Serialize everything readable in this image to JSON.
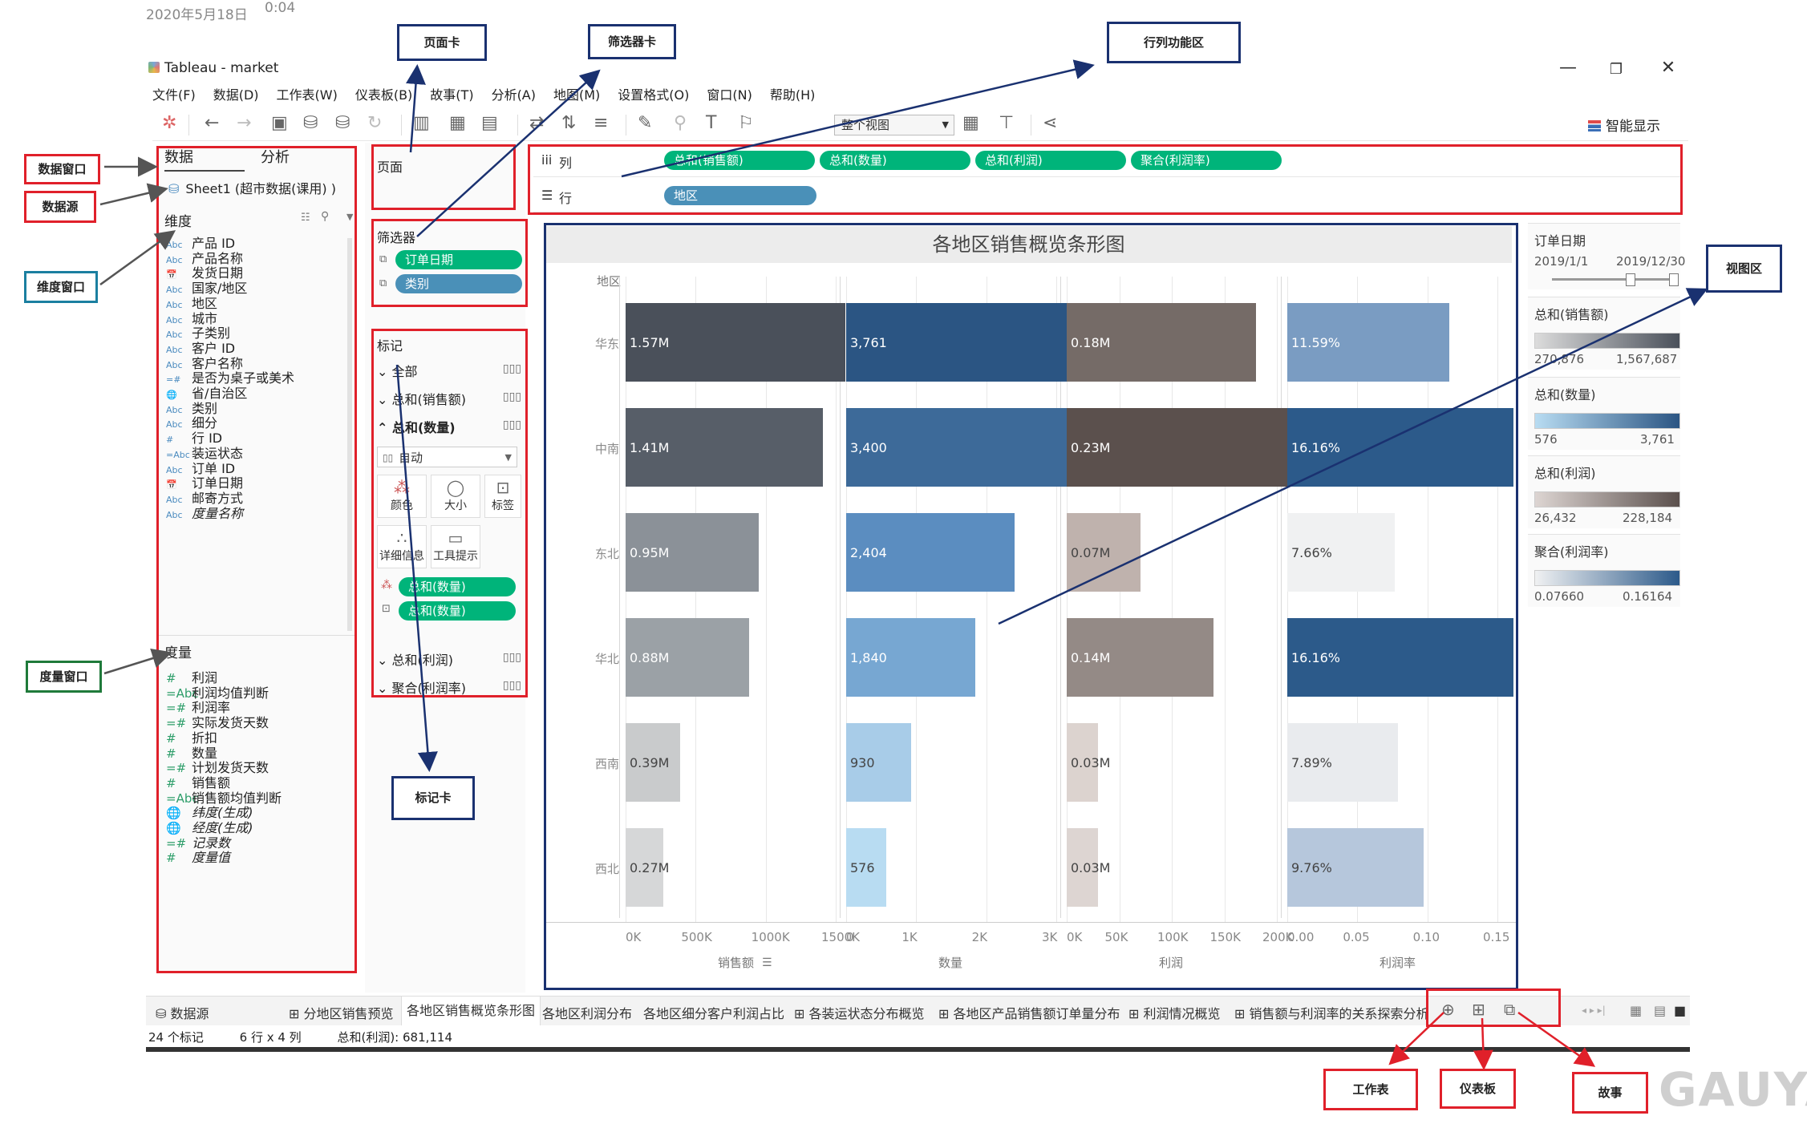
{
  "capture": {
    "date": "2020年5月18日",
    "time": "0:04"
  },
  "window": {
    "title": "Tableau - market",
    "controls": {
      "minimize": "—",
      "restore": "❐",
      "close": "✕"
    }
  },
  "menu": [
    "文件(F)",
    "数据(D)",
    "工作表(W)",
    "仪表板(B)",
    "故事(T)",
    "分析(A)",
    "地图(M)",
    "设置格式(O)",
    "窗口(N)",
    "帮助(H)"
  ],
  "toolbar": {
    "fit": "整个视图",
    "smart_show": "智能显示"
  },
  "data_pane": {
    "tab_data": "数据",
    "tab_analysis": "分析",
    "datasource": "Sheet1 (超市数据(课用) )",
    "dimensions_title": "维度",
    "dimensions": [
      {
        "type": "Abc",
        "name": "产品 ID"
      },
      {
        "type": "Abc",
        "name": "产品名称"
      },
      {
        "type": "📅",
        "name": "发货日期"
      },
      {
        "type": "Abc",
        "name": "国家/地区"
      },
      {
        "type": "Abc",
        "name": "地区"
      },
      {
        "type": "Abc",
        "name": "城市"
      },
      {
        "type": "Abc",
        "name": "子类别"
      },
      {
        "type": "Abc",
        "name": "客户 ID"
      },
      {
        "type": "Abc",
        "name": "客户名称"
      },
      {
        "type": "=#",
        "name": "是否为桌子或美术"
      },
      {
        "type": "🌐",
        "name": "省/自治区"
      },
      {
        "type": "Abc",
        "name": "类别"
      },
      {
        "type": "Abc",
        "name": "细分"
      },
      {
        "type": "#",
        "name": "行 ID"
      },
      {
        "type": "=Abc",
        "name": "装运状态"
      },
      {
        "type": "Abc",
        "name": "订单 ID"
      },
      {
        "type": "📅",
        "name": "订单日期"
      },
      {
        "type": "Abc",
        "name": "邮寄方式"
      },
      {
        "type": "Abc",
        "name": "度量名称"
      }
    ],
    "measures_title": "度量",
    "measures": [
      {
        "type": "#",
        "name": "利润"
      },
      {
        "type": "=Abc",
        "name": "利润均值判断"
      },
      {
        "type": "=#",
        "name": "利润率"
      },
      {
        "type": "=#",
        "name": "实际发货天数"
      },
      {
        "type": "#",
        "name": "折扣"
      },
      {
        "type": "#",
        "name": "数量"
      },
      {
        "type": "=#",
        "name": "计划发货天数"
      },
      {
        "type": "#",
        "name": "销售额"
      },
      {
        "type": "=Abc",
        "name": "销售额均值判断"
      },
      {
        "type": "🌐",
        "name": "纬度(生成)"
      },
      {
        "type": "🌐",
        "name": "经度(生成)"
      },
      {
        "type": "=#",
        "name": "记录数"
      },
      {
        "type": "#",
        "name": "度量值"
      }
    ]
  },
  "pages": {
    "title": "页面"
  },
  "filters": {
    "title": "筛选器",
    "items": [
      "订单日期",
      "类别"
    ]
  },
  "marks": {
    "title": "标记",
    "rows": [
      "全部",
      "总和(销售额)",
      "总和(数量)",
      "总和(利润)",
      "聚合(利润率)"
    ],
    "mark_type": "自动",
    "buttons": [
      "颜色",
      "大小",
      "标签",
      "详细信息",
      "工具提示"
    ],
    "pills": [
      "总和(数量)",
      "总和(数量)"
    ]
  },
  "shelves": {
    "columns_label": "列",
    "rows_label": "行",
    "columns": [
      "总和(销售额)",
      "总和(数量)",
      "总和(利润)",
      "聚合(利润率)"
    ],
    "rows": [
      "地区"
    ]
  },
  "chart_data": {
    "type": "bar",
    "title": "各地区销售概览条形图",
    "row_header": "地区",
    "categories": [
      "华东",
      "中南",
      "东北",
      "华北",
      "西南",
      "西北"
    ],
    "series": [
      {
        "name": "销售额",
        "values": [
          1570000,
          1410000,
          950000,
          880000,
          390000,
          270000
        ],
        "labels": [
          "1.57M",
          "1.41M",
          "0.95M",
          "0.88M",
          "0.39M",
          "0.27M"
        ],
        "axis_max": 1500000,
        "ticks": [
          "0K",
          "500K",
          "1000K",
          "1500K"
        ],
        "colors": [
          "#4a505a",
          "#575e68",
          "#8b9198",
          "#9ba1a6",
          "#c9cbcc",
          "#d6d7d8"
        ]
      },
      {
        "name": "数量",
        "values": [
          3761,
          3400,
          2404,
          1840,
          930,
          576
        ],
        "labels": [
          "3,761",
          "3,400",
          "2,404",
          "1,840",
          "930",
          "576"
        ],
        "axis_max": 3000,
        "ticks": [
          "0",
          "1K",
          "2K",
          "3K"
        ],
        "colors": [
          "#2b5583",
          "#3d6a99",
          "#5b8dc0",
          "#77a7d2",
          "#a8cce8",
          "#b8dcf2"
        ]
      },
      {
        "name": "利润",
        "values": [
          180000,
          230000,
          70000,
          140000,
          30000,
          30000
        ],
        "labels": [
          "0.18M",
          "0.23M",
          "0.07M",
          "0.14M",
          "0.03M",
          "0.03M"
        ],
        "axis_max": 200000,
        "ticks": [
          "0K",
          "50K",
          "100K",
          "150K",
          "200K"
        ],
        "colors": [
          "#756b67",
          "#5b504d",
          "#bfb2ad",
          "#948a86",
          "#dcd3cf",
          "#ddd5d2"
        ]
      },
      {
        "name": "利润率",
        "values": [
          0.1159,
          0.1616,
          0.0766,
          0.1616,
          0.0789,
          0.0976
        ],
        "labels": [
          "11.59%",
          "16.16%",
          "7.66%",
          "16.16%",
          "7.89%",
          "9.76%"
        ],
        "axis_max": 0.15,
        "ticks": [
          "0.00",
          "0.05",
          "0.10",
          "0.15"
        ],
        "colors": [
          "#7a9cc2",
          "#2c5a8a",
          "#f0f1f2",
          "#2c5a8a",
          "#e9ebee",
          "#b6c7dc"
        ]
      }
    ]
  },
  "legends": {
    "date_filter": {
      "title": "订单日期",
      "start": "2019/1/1",
      "end": "2019/12/30"
    },
    "sales": {
      "title": "总和(销售额)",
      "min": "270,876",
      "max": "1,567,687"
    },
    "quantity": {
      "title": "总和(数量)",
      "min": "576",
      "max": "3,761"
    },
    "profit": {
      "title": "总和(利润)",
      "min": "26,432",
      "max": "228,184"
    },
    "margin": {
      "title": "聚合(利润率)",
      "min": "0.07660",
      "max": "0.16164"
    }
  },
  "sheet_tabs": [
    "数据源",
    "分地区销售预览",
    "各地区销售概览条形图",
    "各地区利润分布",
    "各地区细分客户利润占比",
    "各装运状态分布概览",
    "各地区产品销售额订单量分布",
    "利润情况概览",
    "销售额与利润率的关系探索分析"
  ],
  "status": {
    "marks": "24 个标记",
    "grid": "6 行 x 4 列",
    "sum": "总和(利润): 681,114"
  },
  "annotations": {
    "pages_card": "页面卡",
    "filters_card": "筛选器卡",
    "rowcol_area": "行列功能区",
    "data_window": "数据窗口",
    "datasource": "数据源",
    "dimension_window": "维度窗口",
    "measure_window": "度量窗口",
    "marks_card": "标记卡",
    "view_area": "视图区",
    "worksheet": "工作表",
    "dashboard": "仪表板",
    "story": "故事"
  },
  "watermark": "GAUYA",
  "colors": {
    "green_pill": "#00b47a",
    "blue_pill": "#4a90b8",
    "annotation_red": "#e0202a",
    "annotation_navy": "#1a3170"
  }
}
